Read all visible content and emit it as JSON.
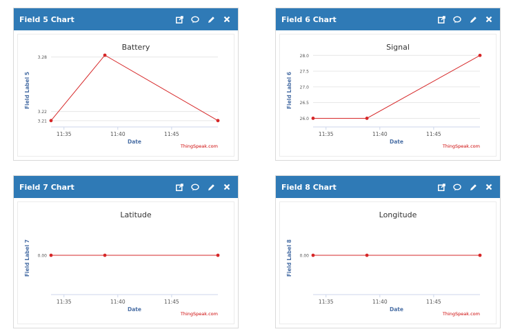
{
  "widgets": [
    {
      "title": "Field 5 Chart",
      "chart_data": {
        "type": "line",
        "title": "Battery",
        "xlabel": "Date",
        "ylabel": "Field Label 5",
        "credit": "ThingSpeak.com",
        "x_ticks": [
          "11:35",
          "11:40",
          "11:45"
        ],
        "x_tick_minutes": [
          35,
          40,
          45
        ],
        "x_range_minutes": [
          33.8,
          49.3
        ],
        "y_ticks": [
          3.21,
          3.22,
          3.28
        ],
        "y_ticks_display": [
          "3.21",
          "3.22",
          "3.28"
        ],
        "ylim": [
          3.2091,
          3.2835
        ],
        "points": [
          {
            "minute": 33.8,
            "value": 3.21
          },
          {
            "minute": 38.8,
            "value": 3.282
          },
          {
            "minute": 49.3,
            "value": 3.21
          }
        ],
        "series_color": "#d62728"
      }
    },
    {
      "title": "Field 6 Chart",
      "chart_data": {
        "type": "line",
        "title": "Signal",
        "xlabel": "Date",
        "ylabel": "Field Label 6",
        "credit": "ThingSpeak.com",
        "x_ticks": [
          "11:35",
          "11:40",
          "11:45"
        ],
        "x_tick_minutes": [
          35,
          40,
          45
        ],
        "x_range_minutes": [
          33.8,
          49.3
        ],
        "y_ticks": [
          26.0,
          26.5,
          27.0,
          27.5,
          28.0
        ],
        "y_ticks_display": [
          "26.0",
          "26.5",
          "27.0",
          "27.5",
          "28.0"
        ],
        "ylim": [
          25.9,
          28.05
        ],
        "points": [
          {
            "minute": 33.8,
            "value": 26
          },
          {
            "minute": 38.8,
            "value": 26
          },
          {
            "minute": 49.3,
            "value": 28
          }
        ],
        "series_color": "#d62728"
      }
    },
    {
      "title": "Field 7 Chart",
      "chart_data": {
        "type": "line",
        "title": "Latitude",
        "xlabel": "Date",
        "ylabel": "Field Label 7",
        "credit": "ThingSpeak.com",
        "x_ticks": [
          "11:35",
          "11:40",
          "11:45"
        ],
        "x_tick_minutes": [
          35,
          40,
          45
        ],
        "x_range_minutes": [
          33.8,
          49.3
        ],
        "y_ticks": [
          0
        ],
        "y_ticks_display": [
          "0.00"
        ],
        "ylim": [
          -1,
          1
        ],
        "points": [
          {
            "minute": 33.8,
            "value": 0
          },
          {
            "minute": 38.8,
            "value": 0
          },
          {
            "minute": 49.3,
            "value": 0
          }
        ],
        "series_color": "#d62728"
      }
    },
    {
      "title": "Field 8 Chart",
      "chart_data": {
        "type": "line",
        "title": "Longitude",
        "xlabel": "Date",
        "ylabel": "Field Label 8",
        "credit": "ThingSpeak.com",
        "x_ticks": [
          "11:35",
          "11:40",
          "11:45"
        ],
        "x_tick_minutes": [
          35,
          40,
          45
        ],
        "x_range_minutes": [
          33.8,
          49.3
        ],
        "y_ticks": [
          0
        ],
        "y_ticks_display": [
          "0.00"
        ],
        "ylim": [
          -1,
          1
        ],
        "points": [
          {
            "minute": 33.8,
            "value": 0
          },
          {
            "minute": 38.8,
            "value": 0
          },
          {
            "minute": 49.3,
            "value": 0
          }
        ],
        "series_color": "#d62728"
      }
    }
  ],
  "toolbar_icons": [
    "external-link-icon",
    "comment-icon",
    "pencil-icon",
    "close-icon"
  ],
  "colors": {
    "header_bg": "#2f7ab6",
    "axis_label": "#4a6fa5",
    "credit": "#cc0000",
    "gridline": "#e6e6e6"
  }
}
